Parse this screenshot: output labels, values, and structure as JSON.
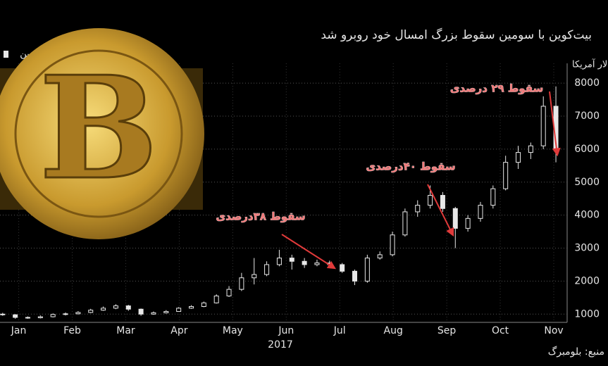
{
  "chart_data": {
    "type": "candlestick",
    "title": "بیت‌کوین با سومین سقوط بزرگ امسال خود روبرو شد",
    "legend": "بیت‌کوین",
    "y_label": "لار آمریکا",
    "x_label": "2017",
    "source": "منبع: بلومبرگ",
    "annotations": [
      "سقوط ۳۸درصدی",
      "سقوط ۴۰درصدی",
      "سقوط ۲۹ درصدی"
    ],
    "color": "#e8e8e8",
    "grid": true,
    "xlim": [
      0.15,
      10.75
    ],
    "ylim": [
      750,
      8600
    ],
    "yticks": [
      1000,
      2000,
      3000,
      4000,
      5000,
      6000,
      7000,
      8000
    ],
    "xticks": [
      {
        "value": 0.5,
        "label": "Jan"
      },
      {
        "value": 1.5,
        "label": "Feb"
      },
      {
        "value": 2.5,
        "label": "Mar"
      },
      {
        "value": 3.5,
        "label": "Apr"
      },
      {
        "value": 4.5,
        "label": "May"
      },
      {
        "value": 5.5,
        "label": "Jun"
      },
      {
        "value": 6.5,
        "label": "Jul"
      },
      {
        "value": 7.5,
        "label": "Aug"
      },
      {
        "value": 8.5,
        "label": "Sep"
      },
      {
        "value": 9.5,
        "label": "Oct"
      },
      {
        "value": 10.5,
        "label": "Nov"
      }
    ],
    "x": [
      0.2,
      0.435,
      0.67,
      0.905,
      1.14,
      1.375,
      1.61,
      1.845,
      2.08,
      2.315,
      2.55,
      2.785,
      3.02,
      3.255,
      3.49,
      3.725,
      3.96,
      4.195,
      4.43,
      4.665,
      4.9,
      5.135,
      5.37,
      5.605,
      5.84,
      6.075,
      6.31,
      6.545,
      6.78,
      7.015,
      7.25,
      7.485,
      7.72,
      7.955,
      8.19,
      8.425,
      8.66,
      8.895,
      9.13,
      9.365,
      9.6,
      9.835,
      10.07,
      10.305,
      10.54
    ],
    "open": [
      1000,
      980,
      900,
      890,
      920,
      990,
      1010,
      1050,
      1120,
      1180,
      1250,
      1150,
      1000,
      1040,
      1080,
      1180,
      1230,
      1340,
      1550,
      1750,
      2100,
      2200,
      2500,
      2700,
      2600,
      2500,
      2550,
      2500,
      2300,
      2000,
      2700,
      2800,
      3400,
      4100,
      4300,
      4600,
      4200,
      3600,
      3900,
      4300,
      4800,
      5600,
      5900,
      6100,
      7300
    ],
    "high": [
      1040,
      1000,
      930,
      960,
      1020,
      1050,
      1090,
      1160,
      1230,
      1300,
      1280,
      1170,
      1080,
      1120,
      1210,
      1270,
      1380,
      1600,
      1850,
      2250,
      2700,
      2600,
      2950,
      2800,
      2700,
      2650,
      2620,
      2550,
      2350,
      2800,
      2900,
      3500,
      4200,
      4450,
      4900,
      4700,
      4250,
      4000,
      4400,
      4900,
      5800,
      6100,
      6200,
      7600,
      7900
    ],
    "low": [
      950,
      860,
      860,
      870,
      900,
      960,
      990,
      1030,
      1100,
      1150,
      1100,
      950,
      980,
      1020,
      1070,
      1160,
      1210,
      1320,
      1520,
      1700,
      1900,
      2150,
      2450,
      2350,
      2400,
      2450,
      2400,
      2250,
      1880,
      1950,
      2650,
      2750,
      3350,
      3950,
      4200,
      4100,
      3000,
      3500,
      3800,
      4200,
      4750,
      5400,
      5700,
      6000,
      5600
    ],
    "close": [
      980,
      900,
      890,
      920,
      990,
      1010,
      1050,
      1120,
      1180,
      1250,
      1150,
      1000,
      1040,
      1080,
      1180,
      1230,
      1340,
      1550,
      1750,
      2100,
      2200,
      2500,
      2700,
      2600,
      2500,
      2550,
      2500,
      2300,
      2000,
      2700,
      2800,
      3400,
      4100,
      4300,
      4600,
      4200,
      3600,
      3900,
      4300,
      4800,
      5600,
      5900,
      6100,
      7300,
      6000
    ]
  }
}
